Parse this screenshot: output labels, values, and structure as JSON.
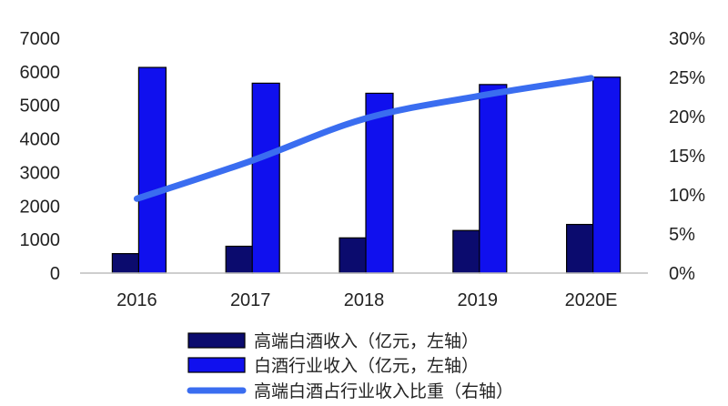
{
  "chart_data": {
    "type": "bar",
    "categories": [
      "2016",
      "2017",
      "2018",
      "2019",
      "2020E"
    ],
    "series": [
      {
        "name": "高端白酒收入（亿元，左轴）",
        "kind": "bar",
        "axis": "left",
        "color": "#0b0b6e",
        "values": [
          580,
          800,
          1050,
          1270,
          1450
        ]
      },
      {
        "name": "白酒行业收入（亿元，左轴）",
        "kind": "bar",
        "axis": "left",
        "color": "#1010ee",
        "values": [
          6130,
          5660,
          5360,
          5620,
          5840
        ]
      },
      {
        "name": "高端白酒占行业收入比重（右轴）",
        "kind": "line",
        "axis": "right",
        "color": "#3a6df0",
        "values": [
          0.095,
          0.143,
          0.197,
          0.226,
          0.249
        ]
      }
    ],
    "y_left": {
      "min": 0,
      "max": 7000,
      "ticks": [
        0,
        1000,
        2000,
        3000,
        4000,
        5000,
        6000,
        7000
      ]
    },
    "y_right": {
      "min": 0,
      "max": 0.3,
      "ticks": [
        "0%",
        "5%",
        "10%",
        "15%",
        "20%",
        "25%",
        "30%"
      ]
    },
    "legend_position": "bottom",
    "title": "",
    "xlabel": "",
    "ylabel": ""
  }
}
